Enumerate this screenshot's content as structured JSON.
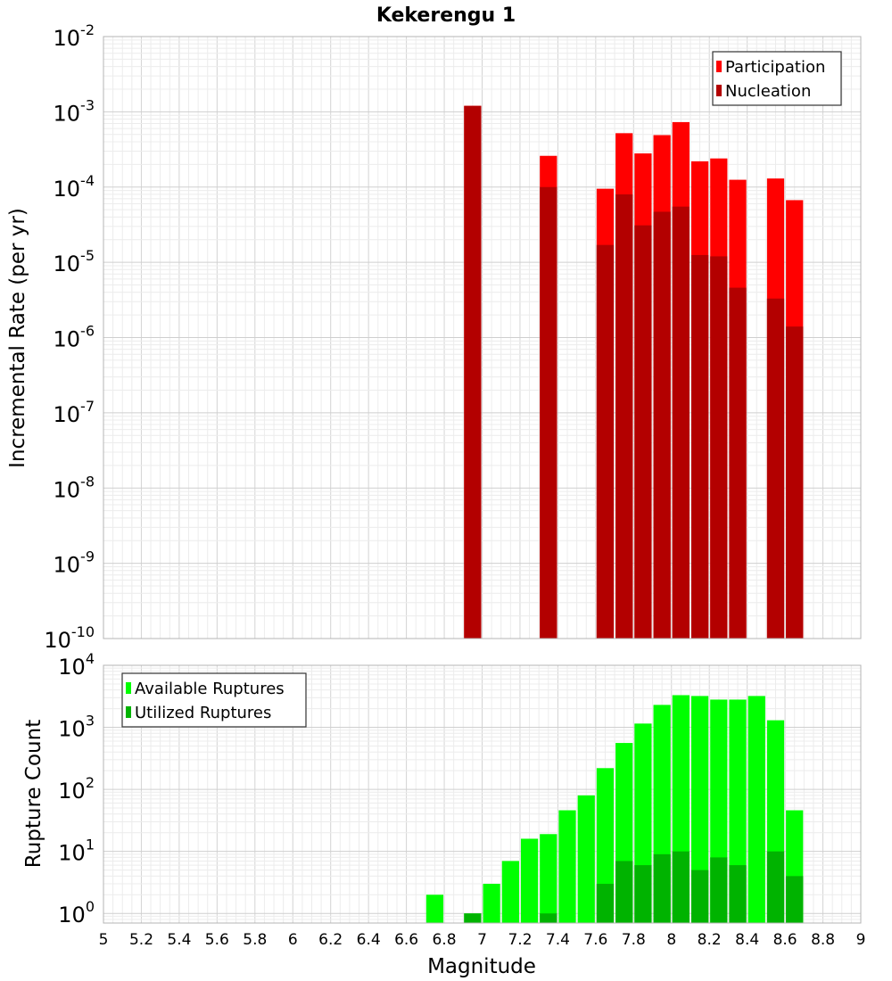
{
  "chart_data": [
    {
      "type": "bar",
      "title": "Kekerengu 1",
      "xlabel": "",
      "ylabel": "Incremental Rate (per yr)",
      "yscale": "log",
      "ylim": [
        1e-10,
        0.01
      ],
      "xlim": [
        5,
        9
      ],
      "grid": true,
      "legend_position": "top-right",
      "y_ticks": [
        {
          "base": "10",
          "exp": "-2",
          "value": 0.01
        },
        {
          "base": "10",
          "exp": "-3",
          "value": 0.001
        },
        {
          "base": "10",
          "exp": "-4",
          "value": 0.0001
        },
        {
          "base": "10",
          "exp": "-5",
          "value": 1e-05
        },
        {
          "base": "10",
          "exp": "-6",
          "value": 1e-06
        },
        {
          "base": "10",
          "exp": "-7",
          "value": 1e-07
        },
        {
          "base": "10",
          "exp": "-8",
          "value": 1e-08
        },
        {
          "base": "10",
          "exp": "-9",
          "value": 1e-09
        },
        {
          "base": "10",
          "exp": "-10",
          "value": 1e-10
        }
      ],
      "x": [
        6.95,
        7.35,
        7.65,
        7.75,
        7.85,
        7.95,
        8.05,
        8.15,
        8.25,
        8.35,
        8.55,
        8.65
      ],
      "series": [
        {
          "name": "Participation",
          "color": "#ff0000",
          "values": [
            0.0012,
            0.00026,
            9.5e-05,
            0.00052,
            0.00028,
            0.00049,
            0.00073,
            0.00022,
            0.00024,
            0.000125,
            0.00013,
            6.7e-05
          ]
        },
        {
          "name": "Nucleation",
          "color": "#b30000",
          "values": [
            0.0012,
            0.0001,
            1.7e-05,
            8e-05,
            3.1e-05,
            4.7e-05,
            5.5e-05,
            1.25e-05,
            1.2e-05,
            4.6e-06,
            3.3e-06,
            1.4e-06
          ]
        }
      ]
    },
    {
      "type": "bar",
      "title": "",
      "xlabel": "Magnitude",
      "ylabel": "Rupture Count",
      "yscale": "log",
      "ylim": [
        0.7,
        10000
      ],
      "xlim": [
        5,
        9
      ],
      "grid": true,
      "legend_position": "top-left",
      "y_ticks": [
        {
          "base": "10",
          "exp": "4",
          "value": 10000
        },
        {
          "base": "10",
          "exp": "3",
          "value": 1000
        },
        {
          "base": "10",
          "exp": "2",
          "value": 100
        },
        {
          "base": "10",
          "exp": "1",
          "value": 10
        },
        {
          "base": "10",
          "exp": "0",
          "value": 1
        }
      ],
      "x_ticks": [
        "5",
        "5.2",
        "5.4",
        "5.6",
        "5.8",
        "6",
        "6.2",
        "6.4",
        "6.6",
        "6.8",
        "7",
        "7.2",
        "7.4",
        "7.6",
        "7.8",
        "8",
        "8.2",
        "8.4",
        "8.6",
        "8.8",
        "9"
      ],
      "x": [
        6.75,
        6.95,
        7.05,
        7.15,
        7.25,
        7.35,
        7.45,
        7.55,
        7.65,
        7.75,
        7.85,
        7.95,
        8.05,
        8.15,
        8.25,
        8.35,
        8.45,
        8.55,
        8.65
      ],
      "series": [
        {
          "name": "Available Ruptures",
          "color": "#00ff00",
          "values": [
            2,
            1,
            3,
            7,
            16,
            19,
            46,
            80,
            220,
            560,
            1150,
            2300,
            3300,
            3200,
            2800,
            2800,
            3200,
            1300,
            46
          ]
        },
        {
          "name": "Utilized Ruptures",
          "color": "#00b300",
          "values": [
            0,
            1,
            0,
            0,
            0,
            1,
            0,
            0,
            3,
            7,
            6,
            9,
            10,
            5,
            8,
            6,
            0,
            10,
            4
          ]
        }
      ]
    }
  ]
}
